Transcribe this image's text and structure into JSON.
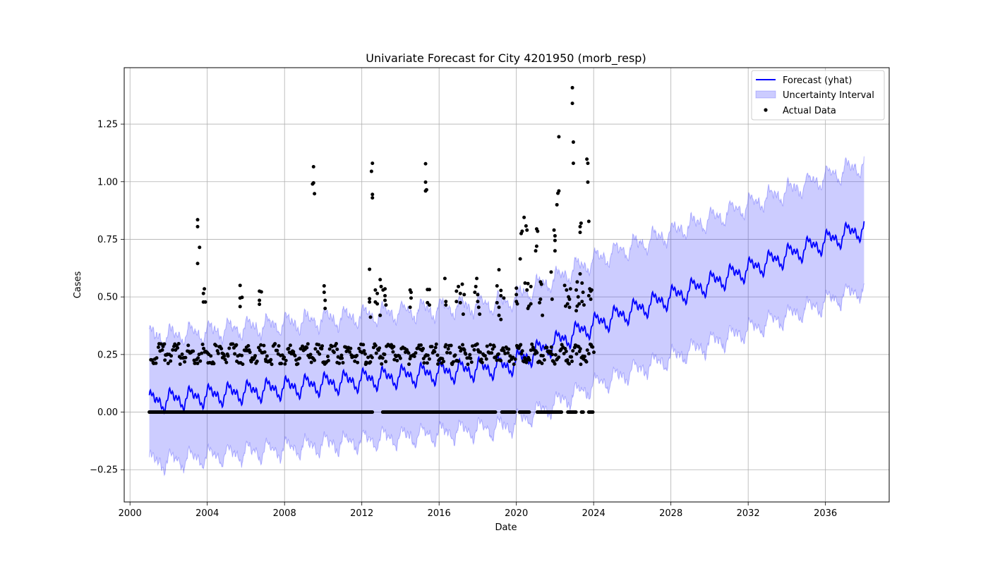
{
  "chart_data": {
    "type": "line",
    "title": "Univariate Forecast for City 4201950 (morb_resp)",
    "xlabel": "Date",
    "ylabel": "Cases",
    "xlim": [
      1999.7,
      2039.3
    ],
    "ylim": [
      -0.39,
      1.495
    ],
    "x_ticks": [
      2000,
      2004,
      2008,
      2012,
      2016,
      2020,
      2024,
      2028,
      2032,
      2036
    ],
    "x_tick_labels": [
      "2000",
      "2004",
      "2008",
      "2012",
      "2016",
      "2020",
      "2024",
      "2028",
      "2032",
      "2036"
    ],
    "y_ticks": [
      -0.25,
      0.0,
      0.25,
      0.5,
      0.75,
      1.0,
      1.25
    ],
    "y_tick_labels": [
      "−0.25",
      "0.00",
      "0.25",
      "0.50",
      "0.75",
      "1.00",
      "1.25"
    ],
    "grid": true,
    "legend_position": "top-right",
    "colors": {
      "forecast": "#0000ff",
      "interval": "#0000ff",
      "actual": "#000000"
    },
    "forecast": {
      "name": "Forecast (yhat)",
      "start": 2001.0,
      "end": 2038.0,
      "trend_points": [
        [
          2001.0,
          0.045
        ],
        [
          2012.0,
          0.14
        ],
        [
          2019.5,
          0.2
        ],
        [
          2024.0,
          0.38
        ],
        [
          2038.0,
          0.8
        ]
      ],
      "interval_lower_offset": 0.255,
      "interval_upper_offset": 0.27
    },
    "interval": {
      "name": "Uncertainty Interval"
    },
    "actual": {
      "name": "Actual Data",
      "points": [
        [
          2003.5,
          0.835
        ],
        [
          2003.5,
          0.805
        ],
        [
          2003.6,
          0.715
        ],
        [
          2003.5,
          0.645
        ],
        [
          2003.85,
          0.535
        ],
        [
          2003.8,
          0.515
        ],
        [
          2003.8,
          0.478
        ],
        [
          2003.9,
          0.478
        ],
        [
          2005.7,
          0.55
        ],
        [
          2005.7,
          0.495
        ],
        [
          2005.8,
          0.498
        ],
        [
          2005.7,
          0.458
        ],
        [
          2006.7,
          0.525
        ],
        [
          2006.8,
          0.522
        ],
        [
          2006.7,
          0.485
        ],
        [
          2006.7,
          0.468
        ],
        [
          2009.5,
          1.065
        ],
        [
          2009.5,
          0.995
        ],
        [
          2009.45,
          0.99
        ],
        [
          2009.55,
          0.948
        ],
        [
          2010.05,
          0.548
        ],
        [
          2010.05,
          0.52
        ],
        [
          2010.1,
          0.485
        ],
        [
          2010.1,
          0.45
        ],
        [
          2012.4,
          0.62
        ],
        [
          2012.4,
          0.492
        ],
        [
          2012.4,
          0.478
        ],
        [
          2012.45,
          0.412
        ],
        [
          2012.55,
          1.08
        ],
        [
          2012.5,
          1.045
        ],
        [
          2012.55,
          0.945
        ],
        [
          2012.55,
          0.93
        ],
        [
          2012.7,
          0.53
        ],
        [
          2012.8,
          0.515
        ],
        [
          2012.7,
          0.478
        ],
        [
          2012.8,
          0.47
        ],
        [
          2012.95,
          0.575
        ],
        [
          2013.0,
          0.545
        ],
        [
          2013.1,
          0.53
        ],
        [
          2013.2,
          0.535
        ],
        [
          2013.2,
          0.505
        ],
        [
          2013.2,
          0.485
        ],
        [
          2013.25,
          0.465
        ],
        [
          2012.95,
          0.42
        ],
        [
          2014.5,
          0.53
        ],
        [
          2014.55,
          0.52
        ],
        [
          2014.55,
          0.495
        ],
        [
          2014.5,
          0.455
        ],
        [
          2015.3,
          1.078
        ],
        [
          2015.3,
          0.998
        ],
        [
          2015.35,
          0.965
        ],
        [
          2015.3,
          0.96
        ],
        [
          2015.4,
          0.532
        ],
        [
          2015.5,
          0.532
        ],
        [
          2015.4,
          0.475
        ],
        [
          2015.5,
          0.465
        ],
        [
          2016.3,
          0.58
        ],
        [
          2016.35,
          0.48
        ],
        [
          2016.35,
          0.465
        ],
        [
          2016.9,
          0.525
        ],
        [
          2017.0,
          0.545
        ],
        [
          2017.1,
          0.515
        ],
        [
          2016.9,
          0.48
        ],
        [
          2017.1,
          0.475
        ],
        [
          2017.2,
          0.555
        ],
        [
          2017.3,
          0.51
        ],
        [
          2017.25,
          0.425
        ],
        [
          2017.85,
          0.52
        ],
        [
          2017.9,
          0.545
        ],
        [
          2017.95,
          0.58
        ],
        [
          2018.0,
          0.51
        ],
        [
          2018.0,
          0.48
        ],
        [
          2018.05,
          0.455
        ],
        [
          2018.1,
          0.425
        ],
        [
          2019.1,
          0.618
        ],
        [
          2019.0,
          0.548
        ],
        [
          2019.2,
          0.528
        ],
        [
          2019.2,
          0.505
        ],
        [
          2019.0,
          0.475
        ],
        [
          2019.1,
          0.455
        ],
        [
          2019.1,
          0.42
        ],
        [
          2019.2,
          0.402
        ],
        [
          2019.35,
          0.495
        ],
        [
          2020.0,
          0.538
        ],
        [
          2020.0,
          0.51
        ],
        [
          2020.0,
          0.48
        ],
        [
          2020.05,
          0.47
        ],
        [
          2020.2,
          0.665
        ],
        [
          2020.25,
          0.775
        ],
        [
          2020.3,
          0.785
        ],
        [
          2020.4,
          0.845
        ],
        [
          2020.5,
          0.808
        ],
        [
          2020.55,
          0.79
        ],
        [
          2020.45,
          0.56
        ],
        [
          2020.55,
          0.53
        ],
        [
          2020.6,
          0.558
        ],
        [
          2020.65,
          0.46
        ],
        [
          2020.6,
          0.45
        ],
        [
          2020.75,
          0.545
        ],
        [
          2020.75,
          0.47
        ],
        [
          2021.05,
          0.795
        ],
        [
          2021.1,
          0.785
        ],
        [
          2021.05,
          0.72
        ],
        [
          2021.0,
          0.7
        ],
        [
          2021.25,
          0.565
        ],
        [
          2021.3,
          0.555
        ],
        [
          2021.25,
          0.49
        ],
        [
          2021.2,
          0.475
        ],
        [
          2021.35,
          0.42
        ],
        [
          2021.8,
          0.608
        ],
        [
          2021.85,
          0.49
        ],
        [
          2021.95,
          0.79
        ],
        [
          2022.0,
          0.765
        ],
        [
          2022.0,
          0.745
        ],
        [
          2022.0,
          0.7
        ],
        [
          2022.1,
          0.9
        ],
        [
          2022.15,
          0.95
        ],
        [
          2022.2,
          0.96
        ],
        [
          2022.2,
          1.195
        ],
        [
          2022.5,
          0.55
        ],
        [
          2022.6,
          0.53
        ],
        [
          2022.7,
          0.5
        ],
        [
          2022.75,
          0.49
        ],
        [
          2022.8,
          0.535
        ],
        [
          2022.55,
          0.46
        ],
        [
          2022.65,
          0.47
        ],
        [
          2022.75,
          0.455
        ],
        [
          2022.9,
          1.408
        ],
        [
          2022.9,
          1.34
        ],
        [
          2022.95,
          1.172
        ],
        [
          2022.95,
          1.08
        ],
        [
          2023.1,
          0.53
        ],
        [
          2023.15,
          0.565
        ],
        [
          2023.2,
          0.5
        ],
        [
          2023.25,
          0.47
        ],
        [
          2023.15,
          0.46
        ],
        [
          2023.1,
          0.44
        ],
        [
          2023.3,
          0.6
        ],
        [
          2023.35,
          0.82
        ],
        [
          2023.3,
          0.805
        ],
        [
          2023.3,
          0.78
        ],
        [
          2023.4,
          0.56
        ],
        [
          2023.45,
          0.52
        ],
        [
          2023.4,
          0.48
        ],
        [
          2023.5,
          0.465
        ],
        [
          2023.65,
          1.098
        ],
        [
          2023.7,
          1.08
        ],
        [
          2023.7,
          0.998
        ],
        [
          2023.75,
          0.828
        ],
        [
          2023.8,
          0.535
        ],
        [
          2023.85,
          0.525
        ],
        [
          2023.75,
          0.505
        ],
        [
          2023.9,
          0.53
        ],
        [
          2023.85,
          0.49
        ]
      ],
      "baseline_mean": 0.252,
      "baseline_spread": 0.045,
      "baseline_start": 2001.1,
      "baseline_end": 2024.0,
      "zero_start": 2001.0,
      "zero_end": 2024.0,
      "zero_gaps": [
        [
          2012.55,
          2013.05
        ],
        [
          2018.95,
          2019.25
        ],
        [
          2019.95,
          2020.15
        ],
        [
          2020.7,
          2021.05
        ],
        [
          2022.35,
          2022.65
        ],
        [
          2023.1,
          2023.35
        ],
        [
          2023.5,
          2023.75
        ]
      ]
    }
  }
}
